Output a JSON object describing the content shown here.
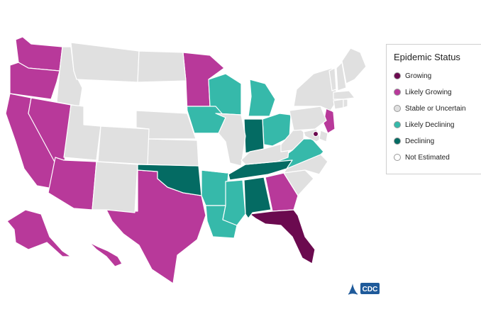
{
  "legend": {
    "title": "Epidemic Status",
    "items": [
      {
        "key": "growing",
        "label": "Growing",
        "color": "#6b0a4f"
      },
      {
        "key": "likely_growing",
        "label": "Likely Growing",
        "color": "#b8399a"
      },
      {
        "key": "stable",
        "label": "Stable or Uncertain",
        "color": "#e0e0e0"
      },
      {
        "key": "likely_declining",
        "label": "Likely Declining",
        "color": "#36b9aa"
      },
      {
        "key": "declining",
        "label": "Declining",
        "color": "#046b63"
      },
      {
        "key": "not_estimated",
        "label": "Not Estimated",
        "color": "#ffffff"
      }
    ]
  },
  "logo": {
    "text": "CDC"
  },
  "states": [
    {
      "id": "WA",
      "status": "likely_growing"
    },
    {
      "id": "OR",
      "status": "likely_growing"
    },
    {
      "id": "CA",
      "status": "likely_growing"
    },
    {
      "id": "NV",
      "status": "likely_growing"
    },
    {
      "id": "AZ",
      "status": "likely_growing"
    },
    {
      "id": "TX",
      "status": "likely_growing"
    },
    {
      "id": "MN",
      "status": "likely_growing"
    },
    {
      "id": "GA",
      "status": "likely_growing"
    },
    {
      "id": "NJ",
      "status": "likely_growing"
    },
    {
      "id": "AK",
      "status": "likely_growing"
    },
    {
      "id": "HI",
      "status": "likely_growing"
    },
    {
      "id": "FL",
      "status": "growing"
    },
    {
      "id": "DC",
      "status": "growing"
    },
    {
      "id": "WI",
      "status": "likely_declining"
    },
    {
      "id": "MI",
      "status": "likely_declining"
    },
    {
      "id": "IA",
      "status": "likely_declining"
    },
    {
      "id": "OH",
      "status": "likely_declining"
    },
    {
      "id": "AR",
      "status": "likely_declining"
    },
    {
      "id": "LA",
      "status": "likely_declining"
    },
    {
      "id": "MS",
      "status": "likely_declining"
    },
    {
      "id": "VA",
      "status": "likely_declining"
    },
    {
      "id": "IN",
      "status": "declining"
    },
    {
      "id": "OK",
      "status": "declining"
    },
    {
      "id": "TN",
      "status": "declining"
    },
    {
      "id": "AL",
      "status": "declining"
    },
    {
      "id": "WY",
      "status": "not_estimated"
    },
    {
      "id": "SD",
      "status": "not_estimated"
    },
    {
      "id": "MO",
      "status": "not_estimated"
    },
    {
      "id": "ID",
      "status": "stable"
    },
    {
      "id": "MT",
      "status": "stable"
    },
    {
      "id": "ND",
      "status": "stable"
    },
    {
      "id": "NE",
      "status": "stable"
    },
    {
      "id": "KS",
      "status": "stable"
    },
    {
      "id": "UT",
      "status": "stable"
    },
    {
      "id": "CO",
      "status": "stable"
    },
    {
      "id": "NM",
      "status": "stable"
    },
    {
      "id": "IL",
      "status": "stable"
    },
    {
      "id": "KY",
      "status": "stable"
    },
    {
      "id": "WV",
      "status": "stable"
    },
    {
      "id": "PA",
      "status": "stable"
    },
    {
      "id": "NY",
      "status": "stable"
    },
    {
      "id": "NC",
      "status": "stable"
    },
    {
      "id": "SC",
      "status": "stable"
    },
    {
      "id": "MD",
      "status": "stable"
    },
    {
      "id": "DE",
      "status": "stable"
    },
    {
      "id": "CT",
      "status": "stable"
    },
    {
      "id": "RI",
      "status": "stable"
    },
    {
      "id": "MA",
      "status": "stable"
    },
    {
      "id": "VT",
      "status": "stable"
    },
    {
      "id": "NH",
      "status": "stable"
    },
    {
      "id": "ME",
      "status": "stable"
    }
  ]
}
